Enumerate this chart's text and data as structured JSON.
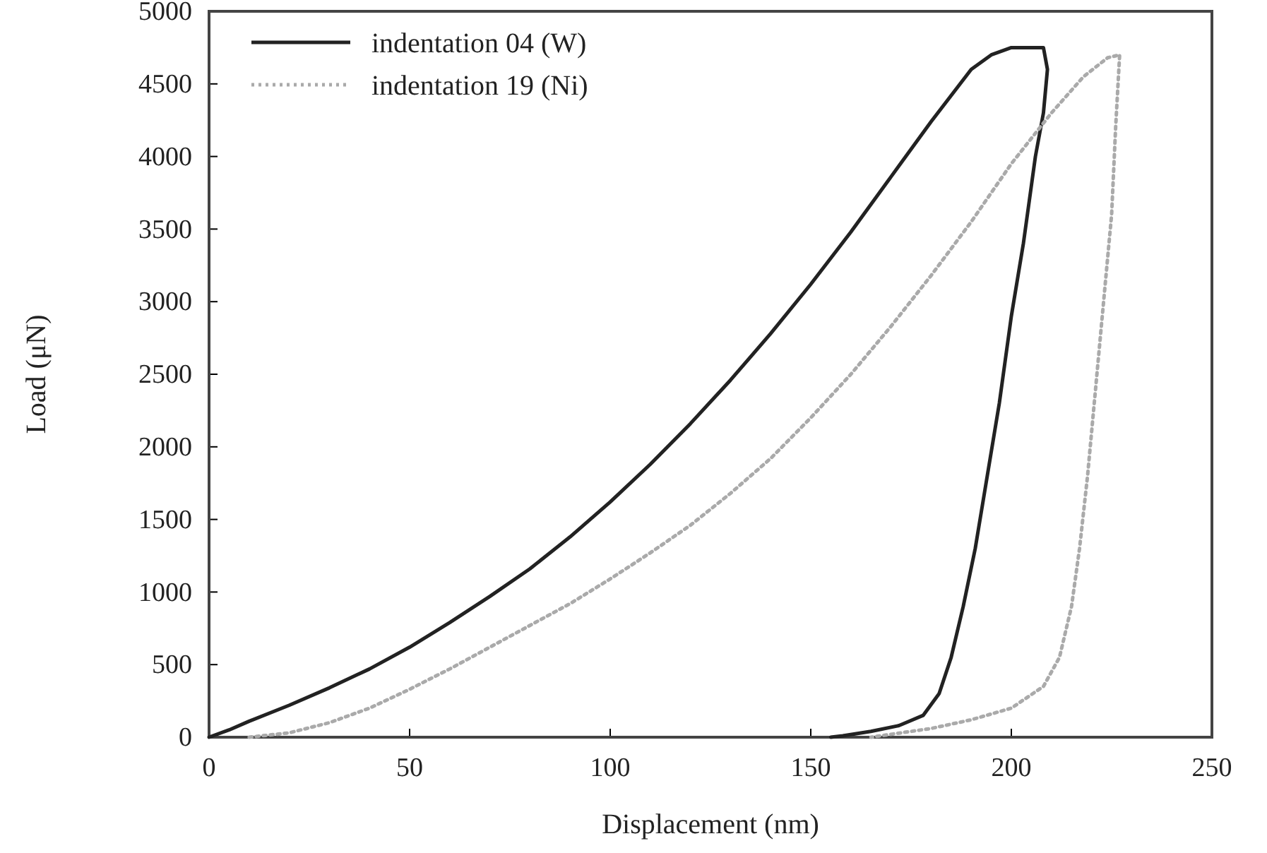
{
  "chart_data": {
    "type": "line",
    "xlabel": "Displacement (nm)",
    "ylabel": "Load (μN)",
    "xlim": [
      0,
      250
    ],
    "ylim": [
      0,
      5000
    ],
    "xticks": [
      0,
      50,
      100,
      150,
      200,
      250
    ],
    "yticks": [
      0,
      500,
      1000,
      1500,
      2000,
      2500,
      3000,
      3500,
      4000,
      4500,
      5000
    ],
    "grid": false,
    "legend": "top left",
    "series": [
      {
        "name": "indentation 04 (W)",
        "color": "#222222",
        "line_style": "solid",
        "x": [
          0,
          5,
          10,
          20,
          30,
          40,
          50,
          60,
          70,
          80,
          90,
          100,
          110,
          120,
          130,
          140,
          150,
          160,
          170,
          180,
          190,
          195,
          200,
          204,
          208,
          209,
          208,
          206,
          205,
          203,
          200,
          197,
          194,
          191,
          188,
          185,
          182,
          178,
          172,
          165,
          158,
          155
        ],
        "values": [
          0,
          50,
          110,
          220,
          340,
          470,
          620,
          790,
          970,
          1160,
          1380,
          1620,
          1880,
          2160,
          2460,
          2780,
          3120,
          3480,
          3860,
          4240,
          4600,
          4700,
          4750,
          4750,
          4750,
          4600,
          4300,
          4000,
          3800,
          3400,
          2900,
          2300,
          1800,
          1300,
          900,
          550,
          300,
          150,
          80,
          40,
          10,
          0
        ]
      },
      {
        "name": "indentation 19 (Ni)",
        "color": "#aaaaaa",
        "line_style": "dotted",
        "x": [
          10,
          20,
          30,
          40,
          50,
          60,
          70,
          80,
          90,
          100,
          110,
          120,
          130,
          140,
          150,
          160,
          170,
          180,
          190,
          200,
          210,
          218,
          224,
          227,
          226,
          225,
          223,
          221,
          219,
          217,
          215,
          212,
          208,
          200,
          190,
          180,
          170,
          165
        ],
        "values": [
          0,
          30,
          100,
          200,
          330,
          470,
          620,
          770,
          920,
          1090,
          1270,
          1460,
          1680,
          1920,
          2200,
          2500,
          2830,
          3180,
          3550,
          3950,
          4300,
          4550,
          4680,
          4700,
          4200,
          3600,
          3000,
          2400,
          1800,
          1300,
          900,
          550,
          350,
          200,
          120,
          60,
          20,
          0
        ]
      }
    ]
  }
}
